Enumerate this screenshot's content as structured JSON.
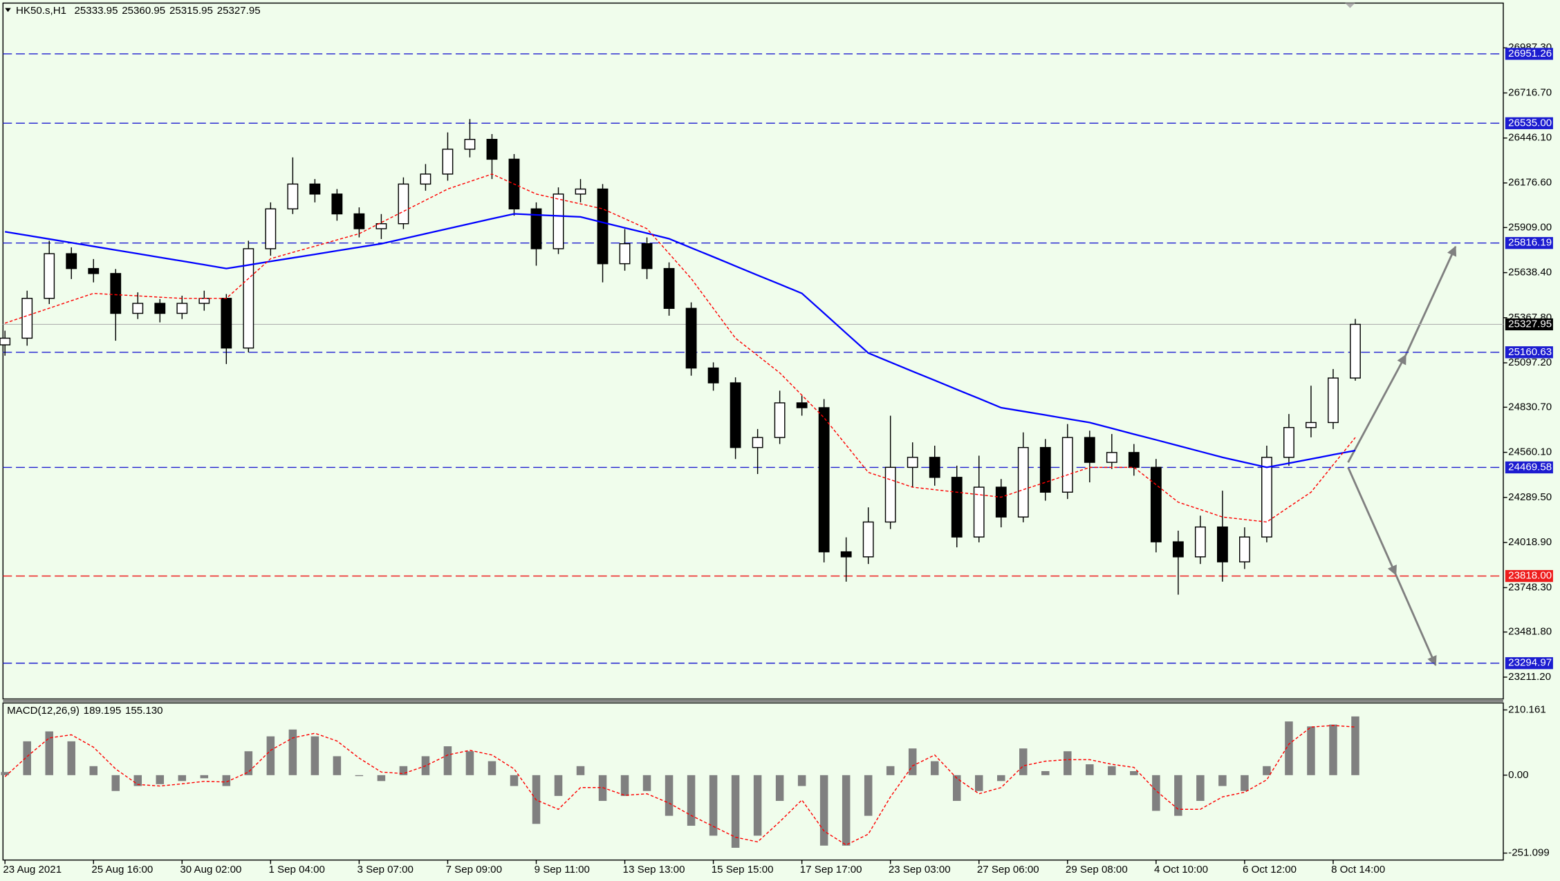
{
  "chart_data": [
    {
      "type": "candlestick",
      "title": "HK50.s,H1",
      "quote": {
        "open": 25333.95,
        "high": 25360.95,
        "low": 25315.95,
        "close": 25327.95
      },
      "categories": [
        "23 Aug 2021",
        null,
        null,
        null,
        "25 Aug 16:00",
        null,
        null,
        null,
        "30 Aug 02:00",
        null,
        null,
        null,
        "1 Sep 04:00",
        null,
        null,
        null,
        "3 Sep 07:00",
        null,
        null,
        null,
        "7 Sep 09:00",
        null,
        null,
        null,
        "9 Sep 11:00",
        null,
        null,
        null,
        "13 Sep 13:00",
        null,
        null,
        null,
        "15 Sep 15:00",
        null,
        null,
        null,
        "17 Sep 17:00",
        null,
        null,
        null,
        "23 Sep 03:00",
        null,
        null,
        null,
        "27 Sep 06:00",
        null,
        null,
        null,
        "29 Sep 08:00",
        null,
        null,
        null,
        "4 Oct 10:00",
        null,
        null,
        null,
        "6 Oct 12:00",
        null,
        null,
        null,
        "8 Oct 14:00",
        null
      ],
      "open": [
        25205,
        25245,
        25484,
        25752,
        25663,
        25633,
        25394,
        25454,
        25394,
        25454,
        25484,
        25186,
        25782,
        26021,
        26170,
        26110,
        25991,
        25902,
        25932,
        26170,
        26230,
        26379,
        26438,
        26319,
        26021,
        25782,
        26110,
        26140,
        25692,
        25812,
        25663,
        25424,
        25066,
        24977,
        24589,
        24649,
        24857,
        24828,
        23963,
        23933,
        24142,
        24470,
        24530,
        24410,
        24052,
        24351,
        24172,
        24589,
        24321,
        24649,
        24500,
        24559,
        24470,
        24023,
        23933,
        24112,
        23903,
        24052,
        24530,
        24709,
        24739,
        25006
      ],
      "high": [
        25290,
        25530,
        25830,
        25790,
        25720,
        25660,
        25520,
        25480,
        25500,
        25530,
        25510,
        25830,
        26060,
        26330,
        26200,
        26140,
        26030,
        25990,
        26210,
        26290,
        26480,
        26560,
        26470,
        26350,
        26060,
        26150,
        26200,
        26170,
        25900,
        25850,
        25700,
        25460,
        25100,
        25010,
        24700,
        24930,
        24900,
        24880,
        24050,
        24230,
        24780,
        24620,
        24600,
        24480,
        24540,
        24400,
        24680,
        24640,
        24730,
        24690,
        24670,
        24610,
        24520,
        24090,
        24180,
        24330,
        24110,
        24600,
        24790,
        24960,
        25060,
        25360.95
      ],
      "low": [
        25140,
        25200,
        25450,
        25600,
        25580,
        25230,
        25360,
        25340,
        25360,
        25410,
        25090,
        25160,
        25740,
        25990,
        26060,
        25950,
        25850,
        25840,
        25900,
        26130,
        26190,
        26330,
        26200,
        25980,
        25680,
        25750,
        26060,
        25580,
        25650,
        25600,
        25380,
        25020,
        24930,
        24520,
        24430,
        24610,
        24780,
        23900,
        23784,
        23890,
        24100,
        24350,
        24360,
        23990,
        24020,
        24110,
        24140,
        24270,
        24280,
        24380,
        24460,
        24420,
        23960,
        23706,
        23890,
        23784,
        23860,
        24020,
        24480,
        24650,
        24700,
        24990
      ],
      "close": [
        25245,
        25484,
        25752,
        25663,
        25633,
        25394,
        25454,
        25394,
        25454,
        25484,
        25186,
        25782,
        26021,
        26170,
        26110,
        25991,
        25902,
        25932,
        26170,
        26230,
        26379,
        26438,
        26319,
        26021,
        25782,
        26110,
        26140,
        25692,
        25812,
        25663,
        25424,
        25066,
        24977,
        24589,
        24649,
        24857,
        24828,
        23963,
        23933,
        24142,
        24470,
        24530,
        24410,
        24052,
        24351,
        24172,
        24589,
        24321,
        24649,
        24500,
        24559,
        24470,
        24023,
        23933,
        24112,
        23903,
        24052,
        24530,
        24709,
        24739,
        25006,
        25327.95
      ],
      "up_color": "#ffffff",
      "down_color": "#000000",
      "moving_averages": [
        {
          "color": "#0000ff",
          "style": "solid",
          "values": [
            25884,
            25862,
            25840,
            25818,
            25796,
            25774,
            25752,
            25730,
            25708,
            25686,
            25663,
            25684,
            25706,
            25727,
            25748,
            25770,
            25791,
            25812,
            25842,
            25872,
            25902,
            25932,
            25962,
            25991,
            25985,
            25979,
            25973,
            25940,
            25907,
            25875,
            25842,
            25787,
            25733,
            25678,
            25623,
            25569,
            25514,
            25395,
            25275,
            25156,
            25101,
            25046,
            24992,
            24937,
            24883,
            24828,
            24806,
            24784,
            24761,
            24739,
            24704,
            24669,
            24635,
            24600,
            24565,
            24530,
            24500,
            24470,
            24495,
            24520,
            24546,
            24571
          ]
        },
        {
          "color": "#ff0000",
          "style": "dashed",
          "values": [
            25335,
            25380,
            25425,
            25470,
            25514,
            25506,
            25499,
            25491,
            25484,
            25484,
            25484,
            25603,
            25722,
            25760,
            25797,
            25835,
            25872,
            25939,
            26006,
            26073,
            26140,
            26185,
            26230,
            26170,
            26110,
            26080,
            26051,
            26021,
            25962,
            25902,
            25753,
            25603,
            25424,
            25245,
            25141,
            25037,
            24903,
            24768,
            24604,
            24440,
            24396,
            24351,
            24336,
            24321,
            24306,
            24291,
            24336,
            24380,
            24425,
            24470,
            24470,
            24470,
            24366,
            24261,
            24217,
            24172,
            24157,
            24142,
            24232,
            24321,
            24485,
            24649
          ]
        }
      ],
      "levels": [
        {
          "value": 26951.26,
          "color": "#1c1cd0"
        },
        {
          "value": 26535,
          "label": "26535.00",
          "color": "#1c1cd0"
        },
        {
          "value": 25816.19,
          "color": "#1c1cd0"
        },
        {
          "value": 25160.63,
          "color": "#1c1cd0"
        },
        {
          "value": 24469.58,
          "color": "#1c1cd0"
        },
        {
          "value": 23818,
          "label": "23818.00",
          "color": "#ee1c1c"
        },
        {
          "value": 23294.97,
          "color": "#1c1cd0"
        }
      ],
      "ylim": [
        23080,
        27256
      ],
      "yticks": [
        {
          "value": 26987.3,
          "label": "26987.30"
        },
        {
          "value": 26716.7,
          "label": "26716.70"
        },
        {
          "value": 26446.1,
          "label": "26446.10"
        },
        {
          "value": 26176.6,
          "label": "26176.60"
        },
        {
          "value": 25909,
          "label": "25909.00"
        },
        {
          "value": 25638.4,
          "label": "25638.40"
        },
        {
          "value": 25367.8,
          "label": "25367.80"
        },
        {
          "value": 25097.2,
          "label": "25097.20"
        },
        {
          "value": 24830.7,
          "label": "24830.70"
        },
        {
          "value": 24560.1,
          "label": "24560.10"
        },
        {
          "value": 24289.5,
          "label": "24289.50"
        },
        {
          "value": 24018.9,
          "label": "24018.90"
        },
        {
          "value": 23748.3,
          "label": "23748.30"
        },
        {
          "value": 23481.8,
          "label": "23481.80"
        },
        {
          "value": 23211.2,
          "label": "23211.20"
        }
      ]
    },
    {
      "type": "macd",
      "title": "MACD(12,26,9)",
      "readout": [
        189.195,
        {
          "value": 155.13,
          "label": "155.130"
        }
      ],
      "series": [
        {
          "color": "#808080",
          "style": "histogram",
          "values": [
            10,
            109,
            141,
            109,
            29,
            -51,
            -35,
            -29,
            -19,
            -10,
            -35,
            77,
            125,
            147,
            125,
            61,
            -3,
            -19,
            29,
            61,
            93,
            77,
            45,
            -35,
            -157,
            -67,
            29,
            -83,
            -67,
            -51,
            -131,
            -163,
            -195,
            -234,
            -195,
            -83,
            -35,
            -227,
            -227,
            -131,
            29,
            86,
            45,
            -83,
            -51,
            -19,
            86,
            13,
            77,
            35,
            29,
            13,
            -115,
            -131,
            -83,
            -35,
            -51,
            29,
            173,
            157,
            163,
            189.195
          ]
        },
        {
          "color": "#ff0000",
          "style": "dashed",
          "values": [
            -5,
            60,
            120,
            130,
            90,
            20,
            -30,
            -35,
            -28,
            -20,
            -22,
            10,
            80,
            120,
            135,
            110,
            55,
            10,
            5,
            30,
            65,
            80,
            65,
            20,
            -80,
            -110,
            -40,
            -40,
            -65,
            -60,
            -90,
            -130,
            -165,
            -200,
            -215,
            -150,
            -80,
            -180,
            -225,
            -190,
            -70,
            30,
            65,
            -10,
            -60,
            -40,
            30,
            45,
            50,
            50,
            35,
            25,
            -50,
            -110,
            -110,
            -70,
            -55,
            -15,
            100,
            155,
            160,
            155.13
          ]
        }
      ],
      "ylim": [
        -273.5,
        232.6
      ],
      "yticks": [
        210.161,
        {
          "value": 0,
          "label": "0.00"
        },
        -251.099
      ]
    }
  ]
}
